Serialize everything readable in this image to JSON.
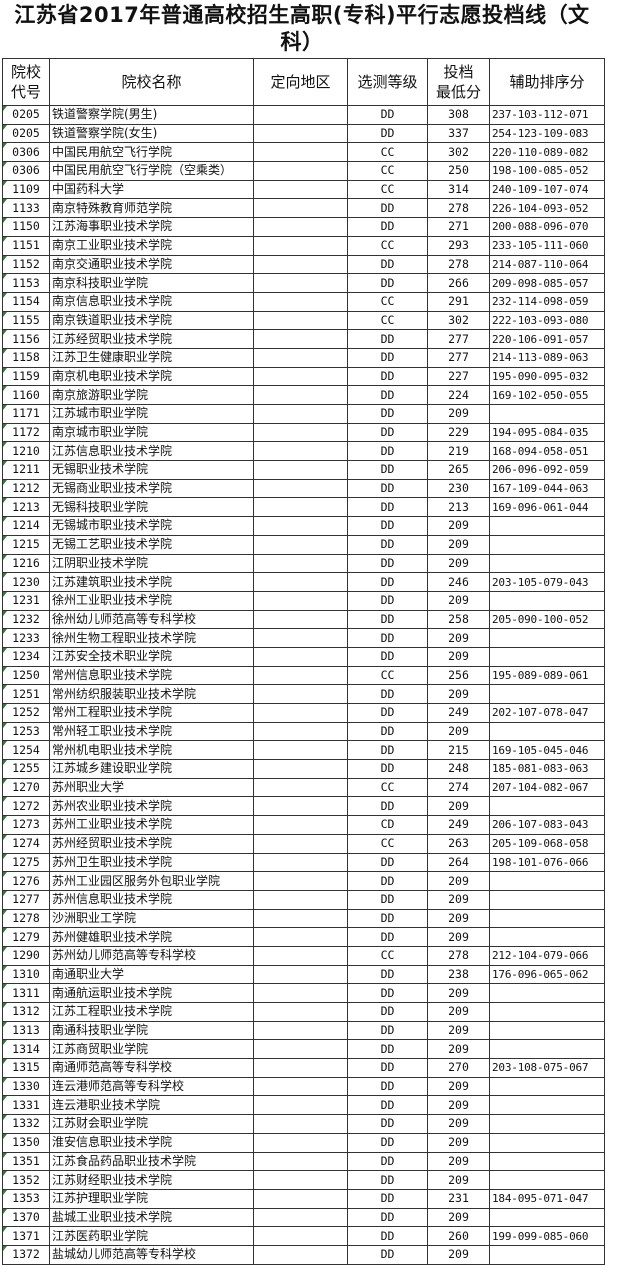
{
  "title_line1": "江苏省2017年普通高校招生高职(专科)平行志愿投档线（文",
  "title_line2": "科）",
  "headers": {
    "code_line1": "院校",
    "code_line2": "代号",
    "name": "院校名称",
    "region": "定向地区",
    "level": "选测等级",
    "score_line1": "投档",
    "score_line2": "最低分",
    "aux": "辅助排序分"
  },
  "rows": [
    {
      "code": "0205",
      "name": "铁道警察学院(男生)",
      "region": "",
      "level": "DD",
      "score": "308",
      "aux": "237-103-112-071"
    },
    {
      "code": "0205",
      "name": "铁道警察学院(女生)",
      "region": "",
      "level": "DD",
      "score": "337",
      "aux": "254-123-109-083"
    },
    {
      "code": "0306",
      "name": "中国民用航空飞行学院",
      "region": "",
      "level": "CC",
      "score": "302",
      "aux": "220-110-089-082"
    },
    {
      "code": "0306",
      "name": "中国民用航空飞行学院（空乘类）",
      "region": "",
      "level": "CC",
      "score": "250",
      "aux": "198-100-085-052"
    },
    {
      "code": "1109",
      "name": "中国药科大学",
      "region": "",
      "level": "CC",
      "score": "314",
      "aux": "240-109-107-074"
    },
    {
      "code": "1133",
      "name": "南京特殊教育师范学院",
      "region": "",
      "level": "DD",
      "score": "278",
      "aux": "226-104-093-052"
    },
    {
      "code": "1150",
      "name": "江苏海事职业技术学院",
      "region": "",
      "level": "DD",
      "score": "271",
      "aux": "200-088-096-070"
    },
    {
      "code": "1151",
      "name": "南京工业职业技术学院",
      "region": "",
      "level": "CC",
      "score": "293",
      "aux": "233-105-111-060"
    },
    {
      "code": "1152",
      "name": "南京交通职业技术学院",
      "region": "",
      "level": "DD",
      "score": "278",
      "aux": "214-087-110-064"
    },
    {
      "code": "1153",
      "name": "南京科技职业学院",
      "region": "",
      "level": "DD",
      "score": "266",
      "aux": "209-098-085-057"
    },
    {
      "code": "1154",
      "name": "南京信息职业技术学院",
      "region": "",
      "level": "CC",
      "score": "291",
      "aux": "232-114-098-059"
    },
    {
      "code": "1155",
      "name": "南京铁道职业技术学院",
      "region": "",
      "level": "CC",
      "score": "302",
      "aux": "222-103-093-080"
    },
    {
      "code": "1156",
      "name": "江苏经贸职业技术学院",
      "region": "",
      "level": "DD",
      "score": "277",
      "aux": "220-106-091-057"
    },
    {
      "code": "1158",
      "name": "江苏卫生健康职业学院",
      "region": "",
      "level": "DD",
      "score": "277",
      "aux": "214-113-089-063"
    },
    {
      "code": "1159",
      "name": "南京机电职业技术学院",
      "region": "",
      "level": "DD",
      "score": "227",
      "aux": "195-090-095-032"
    },
    {
      "code": "1160",
      "name": "南京旅游职业学院",
      "region": "",
      "level": "DD",
      "score": "224",
      "aux": "169-102-050-055"
    },
    {
      "code": "1171",
      "name": "江苏城市职业学院",
      "region": "",
      "level": "DD",
      "score": "209",
      "aux": ""
    },
    {
      "code": "1172",
      "name": "南京城市职业学院",
      "region": "",
      "level": "DD",
      "score": "229",
      "aux": "194-095-084-035"
    },
    {
      "code": "1210",
      "name": "江苏信息职业技术学院",
      "region": "",
      "level": "DD",
      "score": "219",
      "aux": "168-094-058-051"
    },
    {
      "code": "1211",
      "name": "无锡职业技术学院",
      "region": "",
      "level": "DD",
      "score": "265",
      "aux": "206-096-092-059"
    },
    {
      "code": "1212",
      "name": "无锡商业职业技术学院",
      "region": "",
      "level": "DD",
      "score": "230",
      "aux": "167-109-044-063"
    },
    {
      "code": "1213",
      "name": "无锡科技职业学院",
      "region": "",
      "level": "DD",
      "score": "213",
      "aux": "169-096-061-044"
    },
    {
      "code": "1214",
      "name": "无锡城市职业技术学院",
      "region": "",
      "level": "DD",
      "score": "209",
      "aux": ""
    },
    {
      "code": "1215",
      "name": "无锡工艺职业技术学院",
      "region": "",
      "level": "DD",
      "score": "209",
      "aux": ""
    },
    {
      "code": "1216",
      "name": "江阴职业技术学院",
      "region": "",
      "level": "DD",
      "score": "209",
      "aux": ""
    },
    {
      "code": "1230",
      "name": "江苏建筑职业技术学院",
      "region": "",
      "level": "DD",
      "score": "246",
      "aux": "203-105-079-043"
    },
    {
      "code": "1231",
      "name": "徐州工业职业技术学院",
      "region": "",
      "level": "DD",
      "score": "209",
      "aux": ""
    },
    {
      "code": "1232",
      "name": "徐州幼儿师范高等专科学校",
      "region": "",
      "level": "DD",
      "score": "258",
      "aux": "205-090-100-052"
    },
    {
      "code": "1233",
      "name": "徐州生物工程职业技术学院",
      "region": "",
      "level": "DD",
      "score": "209",
      "aux": ""
    },
    {
      "code": "1234",
      "name": "江苏安全技术职业学院",
      "region": "",
      "level": "DD",
      "score": "209",
      "aux": ""
    },
    {
      "code": "1250",
      "name": "常州信息职业技术学院",
      "region": "",
      "level": "CC",
      "score": "256",
      "aux": "195-089-089-061"
    },
    {
      "code": "1251",
      "name": "常州纺织服装职业技术学院",
      "region": "",
      "level": "DD",
      "score": "209",
      "aux": ""
    },
    {
      "code": "1252",
      "name": "常州工程职业技术学院",
      "region": "",
      "level": "DD",
      "score": "249",
      "aux": "202-107-078-047"
    },
    {
      "code": "1253",
      "name": "常州轻工职业技术学院",
      "region": "",
      "level": "DD",
      "score": "209",
      "aux": ""
    },
    {
      "code": "1254",
      "name": "常州机电职业技术学院",
      "region": "",
      "level": "DD",
      "score": "215",
      "aux": "169-105-045-046"
    },
    {
      "code": "1255",
      "name": "江苏城乡建设职业学院",
      "region": "",
      "level": "DD",
      "score": "248",
      "aux": "185-081-083-063"
    },
    {
      "code": "1270",
      "name": "苏州职业大学",
      "region": "",
      "level": "CC",
      "score": "274",
      "aux": "207-104-082-067"
    },
    {
      "code": "1272",
      "name": "苏州农业职业技术学院",
      "region": "",
      "level": "DD",
      "score": "209",
      "aux": ""
    },
    {
      "code": "1273",
      "name": "苏州工业职业技术学院",
      "region": "",
      "level": "CD",
      "score": "249",
      "aux": "206-107-083-043"
    },
    {
      "code": "1274",
      "name": "苏州经贸职业技术学院",
      "region": "",
      "level": "CC",
      "score": "263",
      "aux": "205-109-068-058"
    },
    {
      "code": "1275",
      "name": "苏州卫生职业技术学院",
      "region": "",
      "level": "DD",
      "score": "264",
      "aux": "198-101-076-066"
    },
    {
      "code": "1276",
      "name": "苏州工业园区服务外包职业学院",
      "region": "",
      "level": "DD",
      "score": "209",
      "aux": ""
    },
    {
      "code": "1277",
      "name": "苏州信息职业技术学院",
      "region": "",
      "level": "DD",
      "score": "209",
      "aux": ""
    },
    {
      "code": "1278",
      "name": "沙洲职业工学院",
      "region": "",
      "level": "DD",
      "score": "209",
      "aux": ""
    },
    {
      "code": "1279",
      "name": "苏州健雄职业技术学院",
      "region": "",
      "level": "DD",
      "score": "209",
      "aux": ""
    },
    {
      "code": "1290",
      "name": "苏州幼儿师范高等专科学校",
      "region": "",
      "level": "CC",
      "score": "278",
      "aux": "212-104-079-066"
    },
    {
      "code": "1310",
      "name": "南通职业大学",
      "region": "",
      "level": "DD",
      "score": "238",
      "aux": "176-096-065-062"
    },
    {
      "code": "1311",
      "name": "南通航运职业技术学院",
      "region": "",
      "level": "DD",
      "score": "209",
      "aux": ""
    },
    {
      "code": "1312",
      "name": "江苏工程职业技术学院",
      "region": "",
      "level": "DD",
      "score": "209",
      "aux": ""
    },
    {
      "code": "1313",
      "name": "南通科技职业学院",
      "region": "",
      "level": "DD",
      "score": "209",
      "aux": ""
    },
    {
      "code": "1314",
      "name": "江苏商贸职业学院",
      "region": "",
      "level": "DD",
      "score": "209",
      "aux": ""
    },
    {
      "code": "1315",
      "name": "南通师范高等专科学校",
      "region": "",
      "level": "DD",
      "score": "270",
      "aux": "203-108-075-067"
    },
    {
      "code": "1330",
      "name": "连云港师范高等专科学校",
      "region": "",
      "level": "DD",
      "score": "209",
      "aux": ""
    },
    {
      "code": "1331",
      "name": "连云港职业技术学院",
      "region": "",
      "level": "DD",
      "score": "209",
      "aux": ""
    },
    {
      "code": "1332",
      "name": "江苏财会职业学院",
      "region": "",
      "level": "DD",
      "score": "209",
      "aux": ""
    },
    {
      "code": "1350",
      "name": "淮安信息职业技术学院",
      "region": "",
      "level": "DD",
      "score": "209",
      "aux": ""
    },
    {
      "code": "1351",
      "name": "江苏食品药品职业技术学院",
      "region": "",
      "level": "DD",
      "score": "209",
      "aux": ""
    },
    {
      "code": "1352",
      "name": "江苏财经职业技术学院",
      "region": "",
      "level": "DD",
      "score": "209",
      "aux": ""
    },
    {
      "code": "1353",
      "name": "江苏护理职业学院",
      "region": "",
      "level": "DD",
      "score": "231",
      "aux": "184-095-071-047"
    },
    {
      "code": "1370",
      "name": "盐城工业职业技术学院",
      "region": "",
      "level": "DD",
      "score": "209",
      "aux": ""
    },
    {
      "code": "1371",
      "name": "江苏医药职业学院",
      "region": "",
      "level": "DD",
      "score": "260",
      "aux": "199-099-085-060"
    },
    {
      "code": "1372",
      "name": "盐城幼儿师范高等专科学校",
      "region": "",
      "level": "DD",
      "score": "209",
      "aux": ""
    }
  ]
}
